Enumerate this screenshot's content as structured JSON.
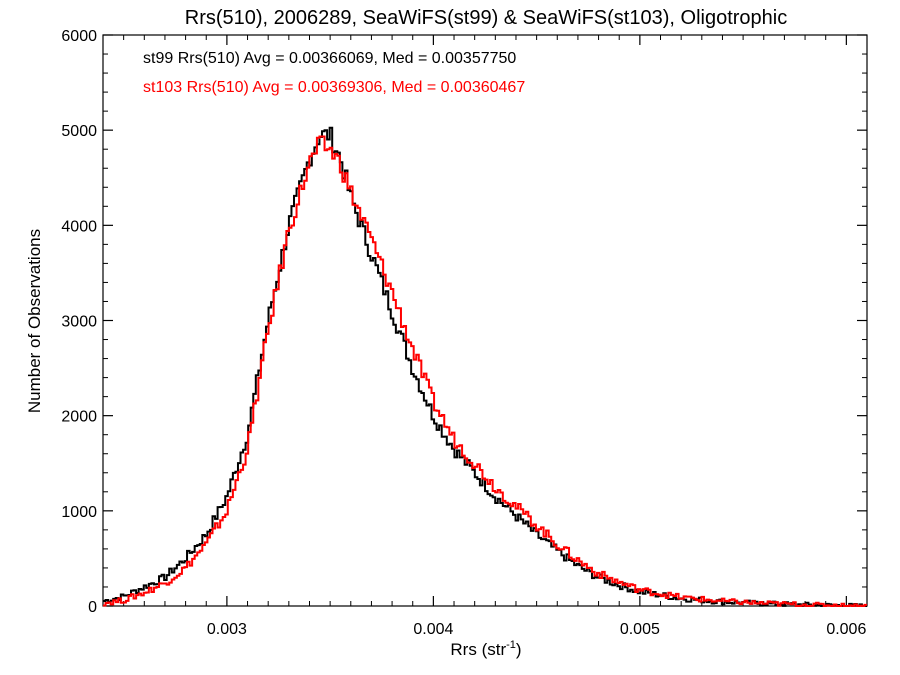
{
  "chart_data": {
    "type": "line",
    "title": "Rrs(510), 2006289, SeaWiFS(st99) & SeaWiFS(st103), Oligotrophic",
    "xlabel_main": "Rrs (str",
    "xlabel_sup": "-1",
    "xlabel_end": ")",
    "ylabel": "Number of Observations",
    "xlim": [
      0.0024,
      0.0061
    ],
    "ylim": [
      0,
      6000
    ],
    "x_ticks": [
      0.003,
      0.004,
      0.005,
      0.006
    ],
    "x_tick_labels": [
      "0.003",
      "0.004",
      "0.005",
      "0.006"
    ],
    "y_ticks": [
      0,
      1000,
      2000,
      3000,
      4000,
      5000,
      6000
    ],
    "y_tick_labels": [
      "0",
      "1000",
      "2000",
      "3000",
      "4000",
      "5000",
      "6000"
    ],
    "annotations": [
      "st99 Rrs(510) Avg = 0.00366069, Med = 0.00357750",
      "st103 Rrs(510) Avg = 0.00369306, Med = 0.00360467"
    ],
    "series": [
      {
        "color": "#000000",
        "x": [
          0.0024,
          0.0025,
          0.0026,
          0.0027,
          0.0028,
          0.0029,
          0.003,
          0.0031,
          0.0032,
          0.0033,
          0.0034,
          0.00345,
          0.0035,
          0.00355,
          0.0036,
          0.0037,
          0.0038,
          0.0039,
          0.004,
          0.0041,
          0.0042,
          0.0043,
          0.0044,
          0.0045,
          0.0046,
          0.0047,
          0.0048,
          0.0049,
          0.005,
          0.0052,
          0.0054,
          0.0056,
          0.0058,
          0.0061
        ],
        "y": [
          50,
          100,
          200,
          300,
          500,
          750,
          1150,
          1800,
          3000,
          4000,
          4700,
          4950,
          4950,
          4700,
          4300,
          3700,
          3100,
          2500,
          2000,
          1650,
          1400,
          1150,
          950,
          750,
          580,
          420,
          300,
          220,
          150,
          80,
          45,
          25,
          12,
          0
        ]
      },
      {
        "color": "#ff0000",
        "x": [
          0.0024,
          0.0025,
          0.0026,
          0.0027,
          0.0028,
          0.0029,
          0.003,
          0.0031,
          0.0032,
          0.0033,
          0.0034,
          0.00345,
          0.0035,
          0.00355,
          0.0036,
          0.0037,
          0.0038,
          0.0039,
          0.004,
          0.0041,
          0.0042,
          0.0043,
          0.0044,
          0.0045,
          0.0046,
          0.0047,
          0.0048,
          0.0049,
          0.005,
          0.0052,
          0.0054,
          0.0056,
          0.0058,
          0.0061
        ],
        "y": [
          30,
          60,
          140,
          240,
          400,
          650,
          1000,
          1650,
          2900,
          3950,
          4650,
          4850,
          4800,
          4650,
          4350,
          3850,
          3300,
          2700,
          2150,
          1750,
          1500,
          1250,
          1050,
          850,
          650,
          480,
          340,
          250,
          170,
          90,
          50,
          28,
          14,
          0
        ]
      }
    ]
  }
}
